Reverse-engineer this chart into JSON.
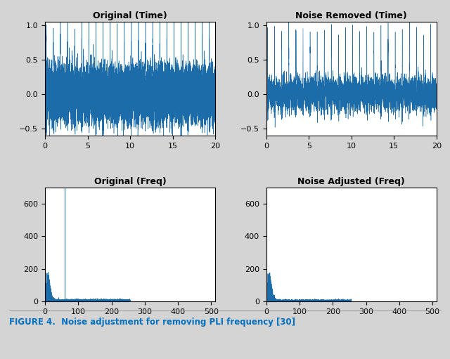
{
  "fig_width": 6.4,
  "fig_height": 5.11,
  "background_color": "#d4d4d4",
  "plot_bg_color": "#ffffff",
  "line_color": "#1b6ca8",
  "title_fontsize": 9,
  "tick_fontsize": 8,
  "caption_text": "FIGURE 4.  Noise adjustment for removing PLI frequency [30]",
  "caption_color": "#0070c0",
  "subplot_titles": [
    "Original (Time)",
    "Noise Removed (Time)",
    "Original (Freq)",
    "Noise Adjusted (Freq)"
  ],
  "time_xlim": [
    0,
    20
  ],
  "time_ylim": [
    -0.6,
    1.05
  ],
  "time_xticks": [
    0,
    5,
    10,
    15,
    20
  ],
  "time_yticks": [
    -0.5,
    0,
    0.5,
    1
  ],
  "freq_xlim": [
    0,
    512
  ],
  "freq_ylim": [
    0,
    700
  ],
  "freq_xticks": [
    0,
    100,
    200,
    300,
    400,
    500
  ],
  "freq_yticks": [
    0,
    200,
    400,
    600
  ],
  "seed": 42,
  "fs": 512,
  "duration": 20
}
